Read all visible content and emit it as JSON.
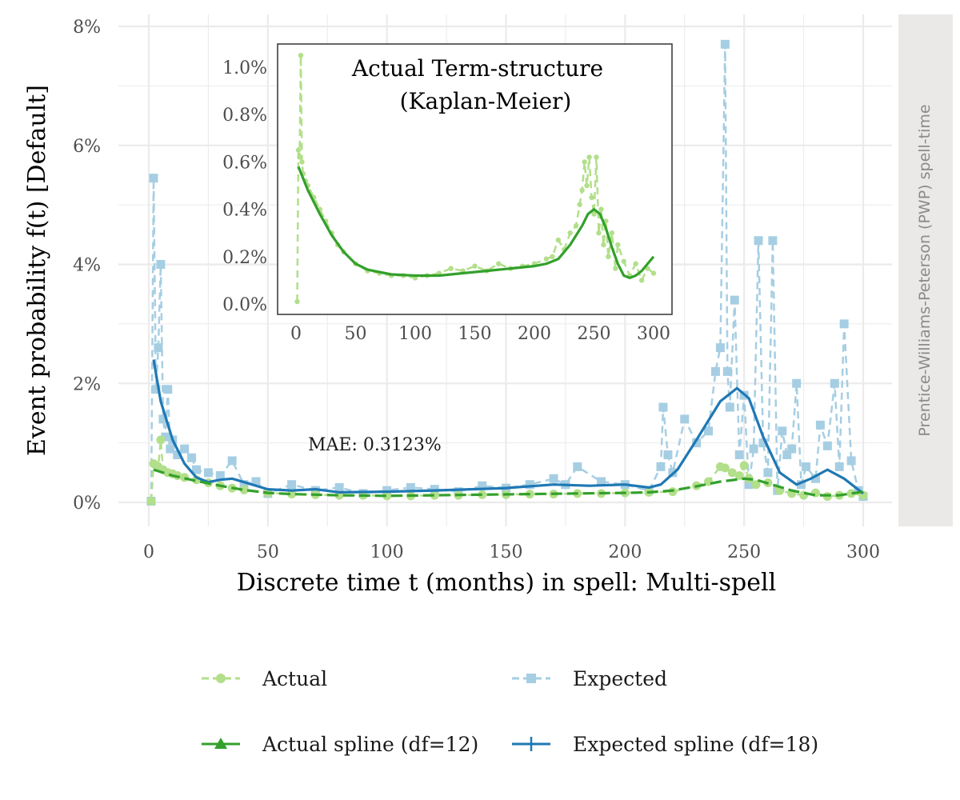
{
  "colors": {
    "actual": "#b2df8a",
    "expected": "#a6cee3",
    "actual_spline": "#33a02c",
    "expected_spline": "#1f78b4",
    "grid": "#ebebeb",
    "strip_bg": "#ebe9e7"
  },
  "chart_data": [
    {
      "type": "line",
      "xlabel": "Discrete time t (months) in spell: Multi-spell",
      "ylabel": "Event probability f(t) [Default]",
      "facet_label": "Prentice-Williams-Peterson (PWP) spell-time",
      "xlim": [
        0,
        300
      ],
      "ylim": [
        0,
        8
      ],
      "x_ticks": [
        0,
        50,
        100,
        150,
        200,
        250,
        300
      ],
      "y_ticks": [
        0,
        2,
        4,
        6,
        8
      ],
      "x_tick_labels": [
        "0",
        "50",
        "100",
        "150",
        "200",
        "250",
        "300"
      ],
      "y_tick_labels": [
        "0%",
        "2%",
        "4%",
        "6%",
        "8%"
      ],
      "grid": true,
      "annotation": "MAE: 0.3123%",
      "legend": {
        "position": "bottom",
        "entries": [
          "Actual",
          "Expected",
          "Actual spline (df=12)",
          "Expected spline (df=18)"
        ]
      },
      "series": [
        {
          "name": "Actual",
          "style": "dashed-points",
          "x": [
            1,
            2,
            3,
            4,
            5,
            6,
            8,
            10,
            12,
            15,
            20,
            25,
            30,
            35,
            40,
            50,
            60,
            70,
            80,
            90,
            100,
            110,
            120,
            130,
            140,
            150,
            160,
            170,
            180,
            190,
            200,
            210,
            220,
            230,
            235,
            240,
            242,
            245,
            248,
            250,
            252,
            255,
            260,
            265,
            270,
            275,
            280,
            285,
            290,
            295,
            300
          ],
          "y": [
            0.02,
            0.65,
            0.62,
            0.6,
            1.05,
            0.55,
            0.5,
            0.48,
            0.45,
            0.42,
            0.38,
            0.33,
            0.28,
            0.24,
            0.21,
            0.16,
            0.14,
            0.13,
            0.12,
            0.12,
            0.11,
            0.11,
            0.12,
            0.12,
            0.13,
            0.13,
            0.14,
            0.14,
            0.15,
            0.15,
            0.16,
            0.17,
            0.18,
            0.28,
            0.35,
            0.6,
            0.58,
            0.5,
            0.45,
            0.62,
            0.4,
            0.3,
            0.33,
            0.2,
            0.15,
            0.12,
            0.16,
            0.1,
            0.12,
            0.15,
            0.12
          ]
        },
        {
          "name": "Expected",
          "style": "dashed-squares",
          "x": [
            1,
            2,
            3,
            4,
            5,
            6,
            7,
            8,
            9,
            10,
            12,
            15,
            18,
            20,
            25,
            30,
            35,
            40,
            45,
            50,
            60,
            70,
            80,
            90,
            100,
            110,
            120,
            130,
            140,
            150,
            160,
            170,
            175,
            180,
            190,
            200,
            210,
            215,
            216,
            218,
            220,
            225,
            230,
            235,
            238,
            240,
            242,
            243,
            244,
            246,
            248,
            250,
            252,
            254,
            256,
            258,
            260,
            262,
            264,
            266,
            268,
            270,
            272,
            274,
            276,
            280,
            282,
            285,
            288,
            290,
            292,
            295,
            298,
            300
          ],
          "y": [
            0.02,
            5.45,
            1.9,
            2.6,
            4.0,
            1.4,
            1.1,
            1.9,
            0.9,
            1.05,
            0.8,
            0.9,
            0.75,
            0.55,
            0.5,
            0.45,
            0.7,
            0.3,
            0.35,
            0.15,
            0.3,
            0.2,
            0.25,
            0.15,
            0.2,
            0.25,
            0.22,
            0.18,
            0.28,
            0.24,
            0.3,
            0.4,
            0.3,
            0.6,
            0.35,
            0.3,
            0.2,
            0.6,
            1.6,
            0.8,
            0.5,
            1.4,
            1.0,
            1.2,
            2.2,
            2.6,
            7.7,
            2.2,
            1.6,
            3.4,
            0.8,
            1.8,
            0.3,
            0.9,
            4.4,
            1.0,
            0.5,
            4.4,
            0.2,
            1.2,
            0.8,
            0.9,
            2.0,
            0.3,
            0.6,
            0.4,
            1.3,
            0.95,
            2.0,
            0.6,
            3.0,
            0.7,
            0.2,
            0.1
          ]
        },
        {
          "name": "Actual spline (df=12)",
          "style": "dashed",
          "x": [
            2,
            10,
            20,
            30,
            40,
            50,
            60,
            80,
            100,
            120,
            140,
            160,
            180,
            200,
            210,
            220,
            230,
            240,
            250,
            255,
            260,
            270,
            280,
            290,
            300
          ],
          "y": [
            0.55,
            0.45,
            0.36,
            0.28,
            0.21,
            0.16,
            0.14,
            0.12,
            0.11,
            0.12,
            0.13,
            0.14,
            0.15,
            0.16,
            0.17,
            0.2,
            0.27,
            0.35,
            0.4,
            0.38,
            0.32,
            0.2,
            0.12,
            0.12,
            0.18
          ]
        },
        {
          "name": "Expected spline (df=18)",
          "style": "solid",
          "x": [
            2,
            5,
            10,
            15,
            20,
            25,
            30,
            35,
            40,
            50,
            60,
            70,
            80,
            100,
            120,
            150,
            170,
            185,
            200,
            210,
            215,
            222,
            230,
            240,
            247,
            252,
            258,
            265,
            272,
            278,
            285,
            292,
            300
          ],
          "y": [
            2.4,
            1.7,
            1.05,
            0.65,
            0.42,
            0.34,
            0.38,
            0.4,
            0.34,
            0.22,
            0.2,
            0.22,
            0.17,
            0.18,
            0.2,
            0.24,
            0.3,
            0.28,
            0.3,
            0.25,
            0.3,
            0.55,
            1.05,
            1.7,
            1.92,
            1.75,
            1.1,
            0.5,
            0.3,
            0.4,
            0.55,
            0.4,
            0.15
          ]
        }
      ]
    },
    {
      "type": "line",
      "title": "Actual Term-structure (Kaplan-Meier)",
      "xlim": [
        0,
        300
      ],
      "ylim": [
        0,
        1.05
      ],
      "x_ticks": [
        0,
        50,
        100,
        150,
        200,
        250,
        300
      ],
      "y_ticks": [
        0,
        0.2,
        0.4,
        0.6,
        0.8,
        1.0
      ],
      "x_tick_labels": [
        "0",
        "50",
        "100",
        "150",
        "200",
        "250",
        "300"
      ],
      "y_tick_labels": [
        "0.0%",
        "0.2%",
        "0.4%",
        "0.6%",
        "0.8%",
        "1.0%"
      ],
      "grid": false,
      "series": [
        {
          "name": "Actual",
          "style": "dashed-points",
          "x": [
            1,
            2,
            3,
            4,
            5,
            6,
            8,
            10,
            15,
            20,
            25,
            30,
            35,
            40,
            50,
            60,
            70,
            80,
            90,
            100,
            110,
            120,
            130,
            140,
            150,
            160,
            170,
            180,
            190,
            200,
            210,
            215,
            220,
            225,
            230,
            235,
            238,
            240,
            242,
            244,
            246,
            248,
            250,
            252,
            254,
            256,
            258,
            260,
            262,
            265,
            268,
            270,
            275,
            280,
            285,
            290,
            295,
            300
          ],
          "y": [
            0.01,
            0.65,
            0.62,
            1.05,
            0.6,
            0.55,
            0.52,
            0.5,
            0.45,
            0.4,
            0.35,
            0.3,
            0.25,
            0.22,
            0.17,
            0.14,
            0.13,
            0.12,
            0.12,
            0.11,
            0.12,
            0.13,
            0.15,
            0.14,
            0.16,
            0.14,
            0.17,
            0.15,
            0.16,
            0.17,
            0.19,
            0.2,
            0.27,
            0.23,
            0.3,
            0.33,
            0.42,
            0.48,
            0.6,
            0.5,
            0.62,
            0.45,
            0.38,
            0.62,
            0.3,
            0.4,
            0.25,
            0.35,
            0.2,
            0.3,
            0.15,
            0.25,
            0.18,
            0.12,
            0.17,
            0.1,
            0.15,
            0.13
          ]
        },
        {
          "name": "Actual spline (df=12)",
          "style": "solid",
          "x": [
            2,
            10,
            20,
            30,
            40,
            50,
            60,
            80,
            100,
            120,
            140,
            160,
            180,
            200,
            210,
            220,
            230,
            240,
            245,
            250,
            255,
            260,
            265,
            270,
            275,
            280,
            285,
            290,
            300
          ],
          "y": [
            0.58,
            0.48,
            0.38,
            0.29,
            0.22,
            0.17,
            0.145,
            0.125,
            0.12,
            0.12,
            0.13,
            0.14,
            0.15,
            0.16,
            0.17,
            0.19,
            0.25,
            0.33,
            0.38,
            0.4,
            0.38,
            0.32,
            0.24,
            0.17,
            0.12,
            0.11,
            0.12,
            0.14,
            0.2
          ]
        }
      ]
    }
  ]
}
